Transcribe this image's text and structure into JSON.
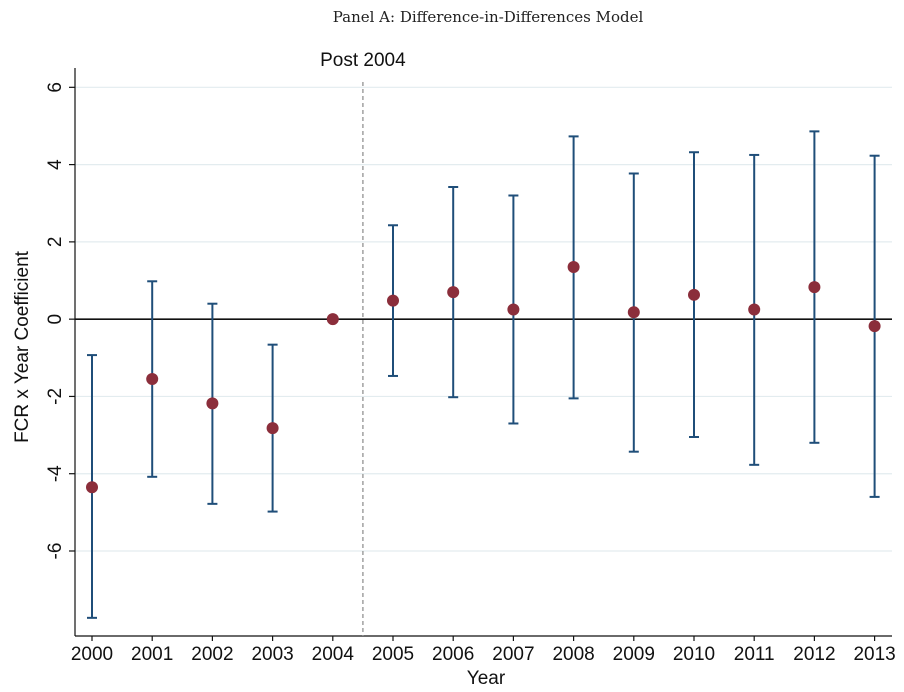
{
  "title": "Panel A: Difference-in-Differences Model",
  "chart_data": {
    "type": "scatter",
    "title": "Panel A: Difference-in-Differences Model",
    "xlabel": "Year",
    "ylabel": "FCR x Year Coefficient",
    "x": [
      2000,
      2001,
      2002,
      2003,
      2004,
      2005,
      2006,
      2007,
      2008,
      2009,
      2010,
      2011,
      2012,
      2013
    ],
    "ylim": [
      -8.2,
      6.5
    ],
    "yticks": [
      6,
      4,
      2,
      0,
      -2,
      -4,
      -6
    ],
    "series": [
      {
        "estimates": [
          -4.35,
          -1.55,
          -2.18,
          -2.82,
          0.0,
          0.48,
          0.7,
          0.25,
          1.35,
          0.18,
          0.63,
          0.25,
          0.83,
          -0.18
        ],
        "ci_upper": [
          -0.93,
          0.98,
          0.4,
          -0.66,
          0.0,
          2.43,
          3.42,
          3.2,
          4.73,
          3.77,
          4.32,
          4.25,
          4.86,
          4.23
        ],
        "ci_lower": [
          -7.73,
          -4.08,
          -4.78,
          -4.98,
          0.0,
          -1.47,
          -2.02,
          -2.7,
          -2.05,
          -3.43,
          -3.05,
          -3.77,
          -3.2,
          -4.6
        ]
      }
    ],
    "reference_line": {
      "y": 0
    },
    "vertical_marker": {
      "label": "Post 2004",
      "after_x": 2004
    },
    "grid": true,
    "colors": {
      "marker": "#8b2e3b",
      "errorbar": "#1f4e79",
      "grid": "#e3ecef",
      "marker_line": "#9a9a9a"
    }
  }
}
